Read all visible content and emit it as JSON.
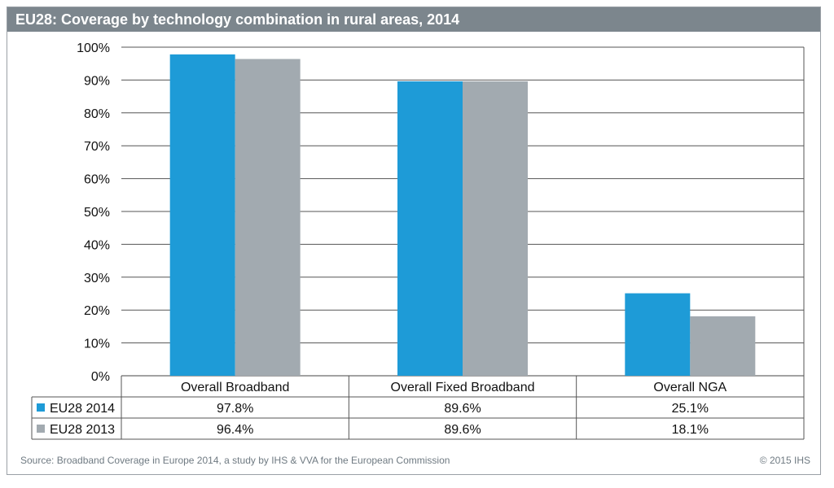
{
  "title": "EU28: Coverage by technology combination in rural areas, 2014",
  "source": "Source: Broadband Coverage in Europe 2014, a study by IHS & VVA for the European Commission",
  "copyright": "© 2015 IHS",
  "colors": {
    "title_bar": "#7c868d",
    "eu28_2014": "#1e9bd7",
    "eu28_2013": "#a2aab0"
  },
  "chart_data": {
    "type": "bar",
    "title": "EU28: Coverage by technology combination in rural areas, 2014",
    "categories": [
      "Overall Broadband",
      "Overall Fixed Broadband",
      "Overall NGA"
    ],
    "series": [
      {
        "name": "EU28 2014",
        "values": [
          97.8,
          89.6,
          25.1
        ],
        "labels": [
          "97.8%",
          "89.6%",
          "25.1%"
        ],
        "color": "#1e9bd7"
      },
      {
        "name": "EU28 2013",
        "values": [
          96.4,
          89.6,
          18.1
        ],
        "labels": [
          "96.4%",
          "89.6%",
          "18.1%"
        ],
        "color": "#a2aab0"
      }
    ],
    "ylim": [
      0,
      100
    ],
    "yticks": [
      "0%",
      "10%",
      "20%",
      "30%",
      "40%",
      "50%",
      "60%",
      "70%",
      "80%",
      "90%",
      "100%"
    ],
    "grid": true,
    "legend": "data-table"
  }
}
